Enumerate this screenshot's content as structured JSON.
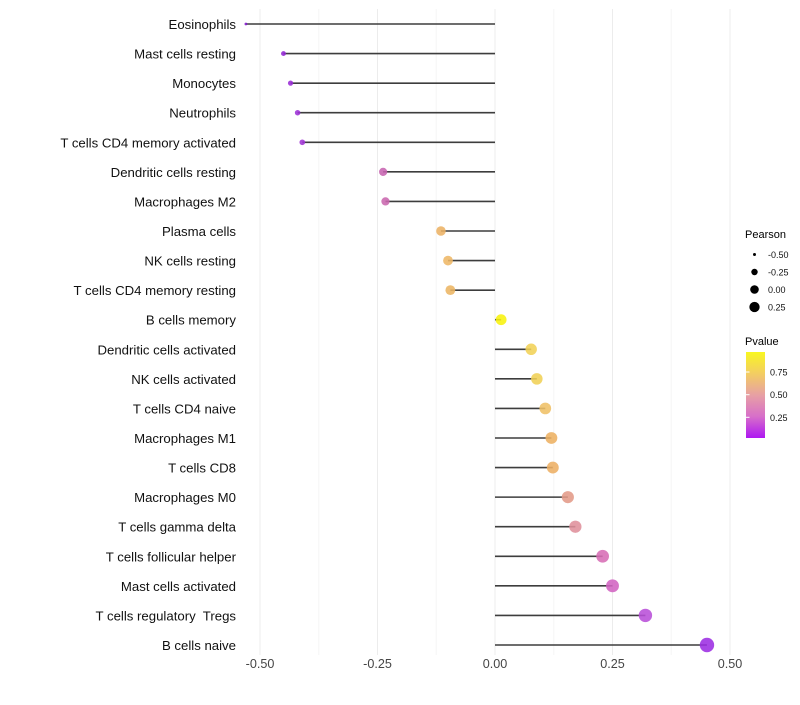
{
  "chart_data": {
    "type": "lollipop",
    "title": "",
    "xlabel": "",
    "ylabel": "",
    "x_axis": {
      "ticks": [
        -0.5,
        -0.25,
        0.0,
        0.25,
        0.5
      ],
      "tick_labels": [
        "-0.50",
        "-0.25",
        "0.00",
        "0.25",
        "0.50"
      ],
      "minor_ticks": [
        -0.375,
        -0.125,
        0.125,
        0.375
      ],
      "range": [
        -0.585,
        0.535
      ],
      "grid": true
    },
    "rows": [
      {
        "label": "Eosinophils",
        "pearson": -0.53,
        "color": "#8219cc"
      },
      {
        "label": "Mast cells resting",
        "pearson": -0.45,
        "color": "#9227d3"
      },
      {
        "label": "Monocytes",
        "pearson": -0.435,
        "color": "#9a2bd6"
      },
      {
        "label": "Neutrophils",
        "pearson": -0.42,
        "color": "#9d31d6"
      },
      {
        "label": "T cells CD4 memory activated",
        "pearson": -0.41,
        "color": "#a136d5"
      },
      {
        "label": "Dendritic cells resting",
        "pearson": -0.238,
        "color": "#c764b0"
      },
      {
        "label": "Macrophages M2",
        "pearson": -0.233,
        "color": "#c967ae"
      },
      {
        "label": "Plasma cells",
        "pearson": -0.115,
        "color": "#ecb264"
      },
      {
        "label": "NK cells resting",
        "pearson": -0.1,
        "color": "#eeb766"
      },
      {
        "label": "T cells CD4 memory resting",
        "pearson": -0.095,
        "color": "#ecb563"
      },
      {
        "label": "B cells memory",
        "pearson": 0.013,
        "color": "#f8f30d"
      },
      {
        "label": "Dendritic cells activated",
        "pearson": 0.077,
        "color": "#f1d257"
      },
      {
        "label": "NK cells activated",
        "pearson": 0.089,
        "color": "#f0d055"
      },
      {
        "label": "T cells CD4 naive",
        "pearson": 0.107,
        "color": "#efc066"
      },
      {
        "label": "Macrophages M1",
        "pearson": 0.12,
        "color": "#edb062"
      },
      {
        "label": "T cells CD8",
        "pearson": 0.123,
        "color": "#edaf64"
      },
      {
        "label": "Macrophages M0",
        "pearson": 0.155,
        "color": "#e39a87"
      },
      {
        "label": "T cells gamma delta",
        "pearson": 0.171,
        "color": "#df8f9b"
      },
      {
        "label": "T cells follicular helper",
        "pearson": 0.229,
        "color": "#d76db5"
      },
      {
        "label": "Mast cells activated",
        "pearson": 0.25,
        "color": "#d263c2"
      },
      {
        "label": "T cells regulatory  Tregs",
        "pearson": 0.32,
        "color": "#b84fd8"
      },
      {
        "label": "B cells naive",
        "pearson": 0.451,
        "color": "#9c2ee2"
      }
    ],
    "legend_position": "right",
    "legends": {
      "pearson": {
        "title": "Pearson",
        "dot_color": "#000000",
        "entries": [
          {
            "value": -0.5,
            "label": "-0.50"
          },
          {
            "value": -0.25,
            "label": "-0.25"
          },
          {
            "value": 0.0,
            "label": "0.00"
          },
          {
            "value": 0.25,
            "label": "0.25"
          }
        ]
      },
      "pvalue": {
        "title": "Pvalue",
        "tick_labels": [
          "0.75",
          "0.50",
          "0.25"
        ],
        "gradient_top_to_bottom": [
          "#f8f721",
          "#f3cd62",
          "#e7a0a4",
          "#d76fc9",
          "#ae18f2"
        ]
      }
    },
    "stem_color": "#3d3d3d",
    "major_grid_color": "#ececec",
    "minor_grid_color": "#f5f5f5"
  }
}
